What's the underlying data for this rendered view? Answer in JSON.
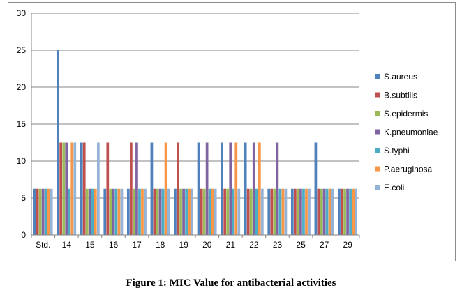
{
  "caption": "Figure 1: MIC Value for antibacterial activities",
  "chart_data": {
    "type": "bar",
    "categories": [
      "Std.",
      "14",
      "15",
      "16",
      "17",
      "18",
      "19",
      "20",
      "21",
      "22",
      "23",
      "25",
      "27",
      "29"
    ],
    "ylim": [
      0,
      30
    ],
    "yticks": [
      0,
      5,
      10,
      15,
      20,
      25,
      30
    ],
    "grid": true,
    "legend_position": "right",
    "series": [
      {
        "name": "S.aureus",
        "color": "#4f81bd",
        "values": [
          6.25,
          25,
          12.5,
          6.25,
          6.25,
          12.5,
          6.25,
          12.5,
          12.5,
          12.5,
          6.25,
          6.25,
          12.5,
          6.25
        ]
      },
      {
        "name": "B.subtilis",
        "color": "#c0504d",
        "values": [
          6.25,
          12.5,
          12.5,
          12.5,
          12.5,
          6.25,
          12.5,
          6.25,
          6.25,
          6.25,
          6.25,
          6.25,
          6.25,
          6.25
        ]
      },
      {
        "name": "S.epidermis",
        "color": "#9bbb59",
        "values": [
          6.25,
          12.5,
          6.25,
          6.25,
          6.25,
          6.25,
          6.25,
          6.25,
          6.25,
          6.25,
          6.25,
          6.25,
          6.25,
          6.25
        ]
      },
      {
        "name": "K.pneumoniae",
        "color": "#8064a2",
        "values": [
          6.25,
          12.5,
          6.25,
          6.25,
          12.5,
          6.25,
          6.25,
          12.5,
          12.5,
          12.5,
          12.5,
          6.25,
          6.25,
          6.25
        ]
      },
      {
        "name": "S.typhi",
        "color": "#4bacc6",
        "values": [
          6.25,
          6.25,
          6.25,
          6.25,
          6.25,
          6.25,
          6.25,
          6.25,
          6.25,
          6.25,
          6.25,
          6.25,
          6.25,
          6.25
        ]
      },
      {
        "name": "P.aeruginosa",
        "color": "#f79646",
        "values": [
          6.25,
          12.5,
          6.25,
          6.25,
          6.25,
          12.5,
          6.25,
          6.25,
          12.5,
          12.5,
          6.25,
          6.25,
          6.25,
          6.25
        ]
      },
      {
        "name": "E.coli",
        "color": "#95b3d7",
        "values": [
          6.25,
          12.5,
          12.5,
          6.25,
          6.25,
          6.25,
          6.25,
          6.25,
          6.25,
          6.25,
          6.25,
          6.25,
          6.25,
          6.25
        ]
      }
    ]
  }
}
